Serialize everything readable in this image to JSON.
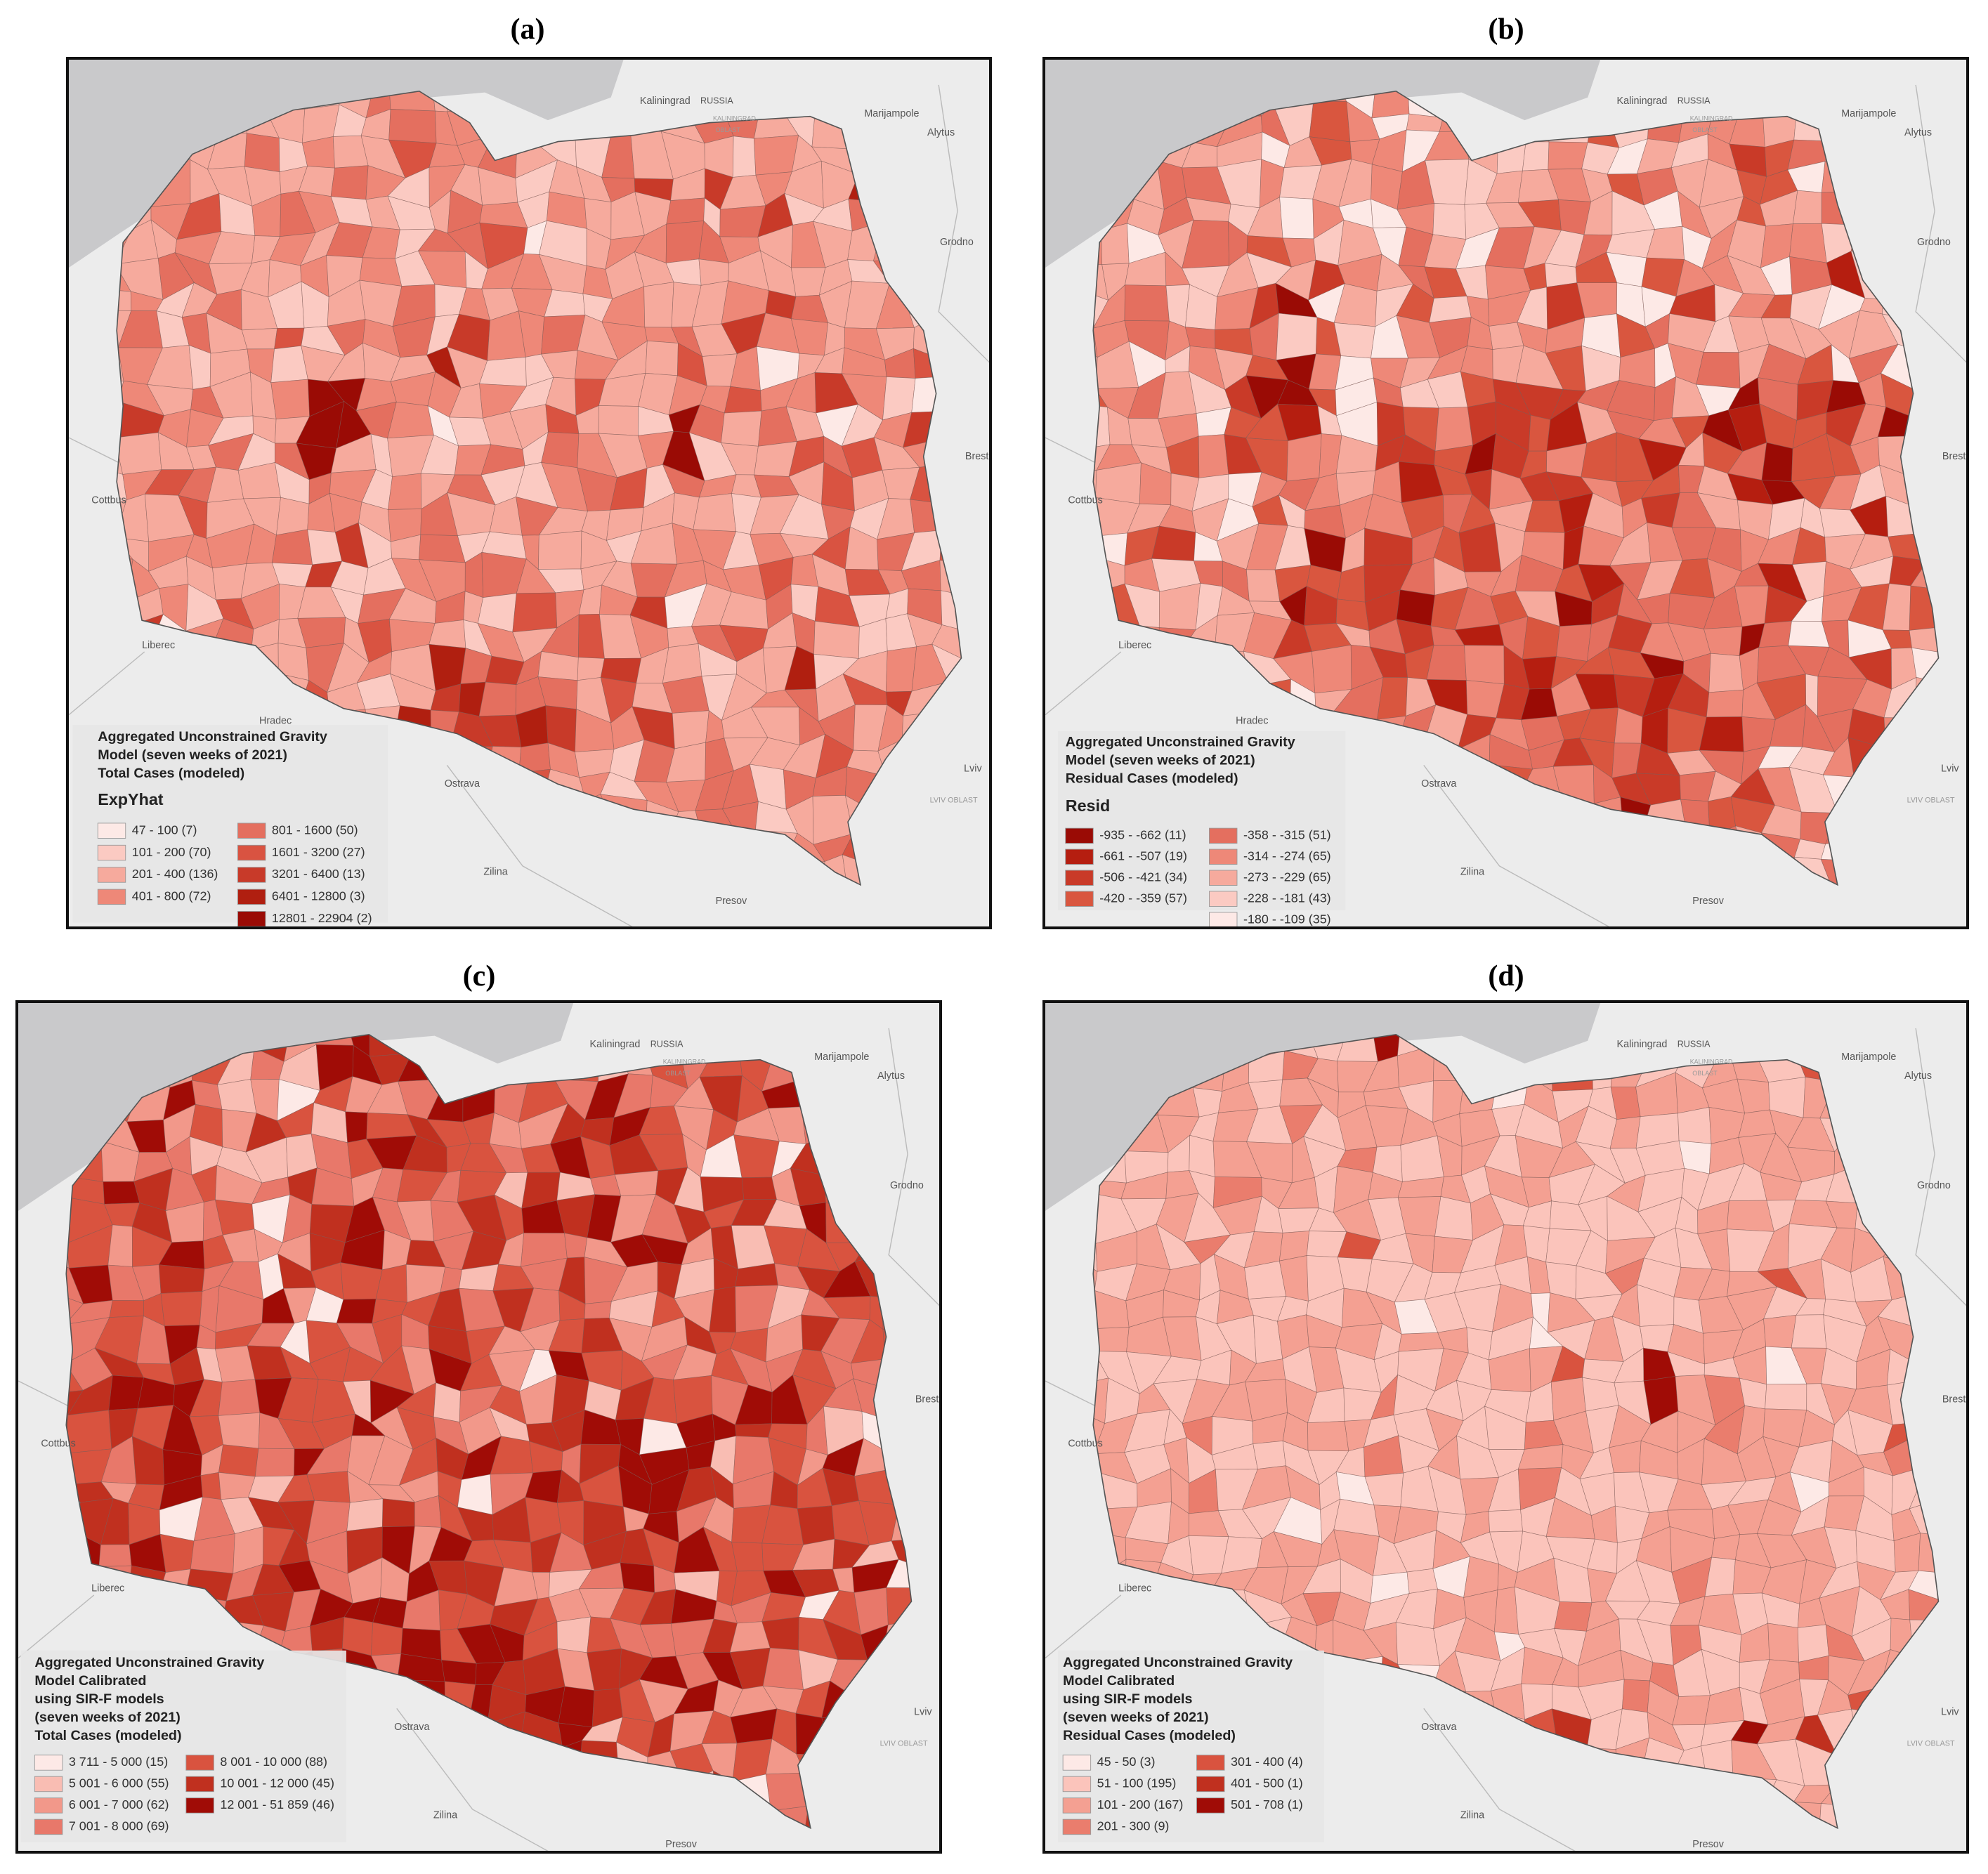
{
  "panels": [
    {
      "label": "(a)",
      "legend_title": [
        "Aggregated Unconstrained Gravity",
        "Model  (seven weeks of 2021)",
        "Total Cases (modeled)"
      ],
      "legend_heading": "ExpYhat",
      "legend_items": [
        {
          "label": "47 - 100 (7)",
          "color": "#fde9e6"
        },
        {
          "label": "101 - 200 (70)",
          "color": "#fbcac2"
        },
        {
          "label": "201 - 400 (136)",
          "color": "#f6aa9d"
        },
        {
          "label": "401 - 800 (72)",
          "color": "#ee8878"
        },
        {
          "label": "801 - 1600 (50)",
          "color": "#e46f5f"
        },
        {
          "label": "1601 - 3200 (27)",
          "color": "#d95341"
        },
        {
          "label": "3201 - 6400 (13)",
          "color": "#c83a29"
        },
        {
          "label": "6401 - 12800 (3)",
          "color": "#b01f10"
        },
        {
          "label": "12801 - 22904 (2)",
          "color": "#9a0b05"
        }
      ]
    },
    {
      "label": "(b)",
      "legend_title": [
        "Aggregated Unconstrained Gravity",
        "Model  (seven weeks of 2021)",
        "Residual Cases (modeled)"
      ],
      "legend_heading": "Resid",
      "legend_items": [
        {
          "label": "-935 - -662 (11)",
          "color": "#9a0b05"
        },
        {
          "label": "-661 - -507 (19)",
          "color": "#b51e10"
        },
        {
          "label": "-506 - -421 (34)",
          "color": "#c93a28"
        },
        {
          "label": "-420 - -359 (57)",
          "color": "#d9563f"
        },
        {
          "label": "-358 - -315 (51)",
          "color": "#e46f5f"
        },
        {
          "label": "-314 - -274 (65)",
          "color": "#ee8878"
        },
        {
          "label": "-273 - -229 (65)",
          "color": "#f6aa9d"
        },
        {
          "label": "-228 - -181 (43)",
          "color": "#fbcac2"
        },
        {
          "label": "-180 - -109 (35)",
          "color": "#fde9e6"
        }
      ]
    },
    {
      "label": "(c)",
      "legend_title": [
        "Aggregated Unconstrained Gravity",
        "Model Calibrated",
        "using SIR-F models",
        " (seven weeks of 2021)",
        "Total Cases (modeled)"
      ],
      "legend_items": [
        {
          "label": "3 711 - 5 000 (15)",
          "color": "#fde9e6"
        },
        {
          "label": "5 001 - 6 000 (55)",
          "color": "#f9bdb3"
        },
        {
          "label": "6 001 - 7 000 (62)",
          "color": "#f2988a"
        },
        {
          "label": "7 001 - 8 000 (69)",
          "color": "#e8786a"
        },
        {
          "label": "8 001 - 10 000 (88)",
          "color": "#d9533f"
        },
        {
          "label": "10 001 - 12 000 (45)",
          "color": "#c0301f"
        },
        {
          "label": "12 001 - 51 859 (46)",
          "color": "#a00c06"
        }
      ]
    },
    {
      "label": "(d)",
      "legend_title": [
        "Aggregated Unconstrained Gravity",
        "Model Calibrated",
        "using SIR-F models",
        " (seven weeks of 2021)",
        "Residual Cases (modeled)"
      ],
      "legend_items": [
        {
          "label": "45 - 50 (3)",
          "color": "#fde9e6"
        },
        {
          "label": "51 - 100 (195)",
          "color": "#fbc4bb"
        },
        {
          "label": "101 - 200 (167)",
          "color": "#f4a092"
        },
        {
          "label": "201 - 300 (9)",
          "color": "#ea7d6d"
        },
        {
          "label": "301 - 400 (4)",
          "color": "#d9533f"
        },
        {
          "label": "401 - 500 (1)",
          "color": "#c0301f"
        },
        {
          "label": "501 - 708 (1)",
          "color": "#a00c06"
        }
      ]
    }
  ],
  "map_labels": [
    "Kaliningrad",
    "RUSSIA",
    "KALININGRAD",
    "OBLAST",
    "Marijampole",
    "Alytus",
    "Grodno",
    "Brest",
    "Cottbus",
    "Liberec",
    "Hradec",
    "Ostrava",
    "Zilina",
    "Presov",
    "Lviv",
    "LVIV OBLAST"
  ]
}
